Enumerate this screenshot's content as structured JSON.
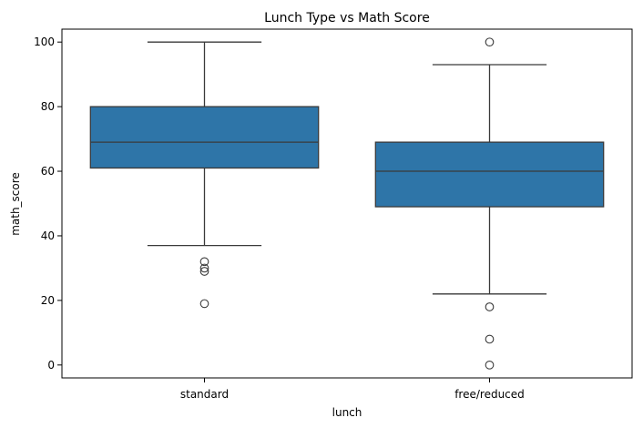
{
  "chart_data": {
    "type": "box",
    "title": "Lunch Type vs Math Score",
    "xlabel": "lunch",
    "ylabel": "math_score",
    "ylim": [
      -4,
      104
    ],
    "yticks": [
      0,
      20,
      40,
      60,
      80,
      100
    ],
    "grid": false,
    "color": "#2e75a8",
    "categories": [
      "standard",
      "free/reduced"
    ],
    "boxes": [
      {
        "category": "standard",
        "whisker_low": 37,
        "q1": 61,
        "median": 69,
        "q3": 80,
        "whisker_high": 100,
        "outliers": [
          32,
          30,
          29,
          19
        ]
      },
      {
        "category": "free/reduced",
        "whisker_low": 22,
        "q1": 49,
        "median": 60,
        "q3": 69,
        "whisker_high": 93,
        "outliers": [
          100,
          18,
          8,
          0
        ]
      }
    ]
  }
}
